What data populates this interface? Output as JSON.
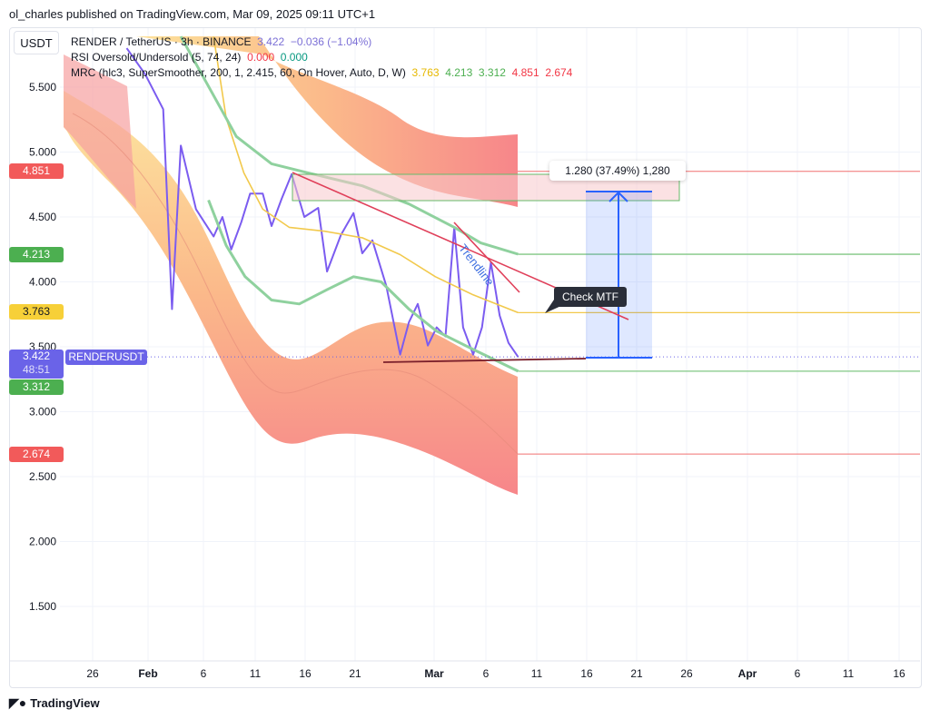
{
  "header": {
    "published": "ol_charles published on TradingView.com, Mar 09, 2025 09:11 UTC+1"
  },
  "currency_button": "USDT",
  "legend": {
    "symbol": "RENDER / TetherUS · 3h · BINANCE",
    "price": "3.422",
    "change": "−0.036 (−1.04%)",
    "rsi": "RSI Oversold/Undersold (5, 74, 24)",
    "rsi_v1": "0.000",
    "rsi_v2": "0.000",
    "mrc": "MRC (hlc3, SuperSmoother, 200, 1, 2.415, 60, On Hover, Auto, D, W)",
    "mrc_values": [
      "3.763",
      "4.213",
      "3.312",
      "4.851",
      "2.674"
    ]
  },
  "colors": {
    "price_line": "#7b5cf0",
    "mean": "#f2c94c",
    "inner": "#81c784",
    "outer": "#f07070",
    "accent": "#2962ff",
    "label_blue": "#6a63e8",
    "red": "#f23645",
    "green": "#4caf50"
  },
  "price_labels": {
    "r1": "4.851",
    "g1": "4.213",
    "y": "3.763",
    "cur": "3.422",
    "timer": "48:51",
    "g2": "3.312",
    "r2": "2.674",
    "symbol": "RENDERUSDT"
  },
  "annotations": {
    "measure": "1.280 (37.49%) 1,280",
    "trendline": "Trendline",
    "callout": "Check MTF"
  },
  "footer": {
    "brand": "TradingView"
  },
  "chart_data": {
    "type": "line",
    "title": "RENDER / TetherUS · 3h · BINANCE",
    "ylim": [
      1.1,
      5.9
    ],
    "y_ticks": [
      "5.500",
      "5.000",
      "4.500",
      "4.000",
      "3.500",
      "3.000",
      "2.500",
      "2.000",
      "1.500"
    ],
    "x_ticks": [
      "26",
      "Feb",
      "6",
      "11",
      "16",
      "21",
      "Mar",
      "6",
      "11",
      "16",
      "21",
      "26",
      "Apr",
      "6",
      "11",
      "16"
    ],
    "grid": true,
    "series": [
      {
        "name": "RENDER / TetherUS",
        "points": [
          [
            "2025-01-29 09:00",
            5.8
          ],
          [
            "2025-01-31 05:00",
            5.6
          ],
          [
            "2025-02-02 00:00",
            5.33
          ],
          [
            "2025-02-02 21:00",
            3.79
          ],
          [
            "2025-02-03 18:00",
            5.05
          ],
          [
            "2025-02-05 06:00",
            4.56
          ],
          [
            "2025-02-07 00:00",
            4.35
          ],
          [
            "2025-02-07 21:00",
            4.5
          ],
          [
            "2025-02-08 18:00",
            4.25
          ],
          [
            "2025-02-09 18:00",
            4.46
          ],
          [
            "2025-02-10 15:00",
            4.68
          ],
          [
            "2025-02-11 21:00",
            4.68
          ],
          [
            "2025-02-12 18:00",
            4.43
          ],
          [
            "2025-02-13 18:00",
            4.64
          ],
          [
            "2025-02-14 18:00",
            4.83
          ],
          [
            "2025-02-16 00:00",
            4.5
          ],
          [
            "2025-02-17 09:00",
            4.57
          ],
          [
            "2025-02-18 06:00",
            4.08
          ],
          [
            "2025-02-19 15:00",
            4.36
          ],
          [
            "2025-02-20 21:00",
            4.53
          ],
          [
            "2025-02-21 18:00",
            4.22
          ],
          [
            "2025-02-22 18:00",
            4.32
          ],
          [
            "2025-02-24 03:00",
            3.97
          ],
          [
            "2025-02-25 12:00",
            3.44
          ],
          [
            "2025-02-26 09:00",
            3.69
          ],
          [
            "2025-02-27 06:00",
            3.83
          ],
          [
            "2025-02-28 06:00",
            3.51
          ],
          [
            "2025-03-01 03:00",
            3.65
          ],
          [
            "2025-03-02 00:00",
            3.58
          ],
          [
            "2025-03-02 21:00",
            4.42
          ],
          [
            "2025-03-03 18:00",
            3.65
          ],
          [
            "2025-03-04 18:00",
            3.44
          ],
          [
            "2025-03-05 15:00",
            3.65
          ],
          [
            "2025-03-06 12:00",
            4.15
          ],
          [
            "2025-03-07 09:00",
            3.74
          ],
          [
            "2025-03-08 06:00",
            3.53
          ],
          [
            "2025-03-09 05:00",
            3.422
          ]
        ]
      },
      {
        "name": "MRC mean",
        "points": [
          [
            "2025-02-07",
            5.89
          ],
          [
            "2025-02-08 06:00",
            5.26
          ],
          [
            "2025-02-10",
            4.84
          ],
          [
            "2025-02-11 21:00",
            4.56
          ],
          [
            "2025-02-14 12:00",
            4.42
          ],
          [
            "2025-02-18",
            4.39
          ],
          [
            "2025-02-21 18:00",
            4.34
          ],
          [
            "2025-02-25 12:00",
            4.21
          ],
          [
            "2025-03-01",
            4.04
          ],
          [
            "2025-03-04 18:00",
            3.9
          ],
          [
            "2025-03-09 05:00",
            3.763
          ]
        ]
      },
      {
        "name": "MRC upper inner",
        "points": [
          [
            "2025-02-03 18:00",
            5.89
          ],
          [
            "2025-02-09 06:00",
            5.12
          ],
          [
            "2025-02-12 18:00",
            4.91
          ],
          [
            "2025-02-16 09:00",
            4.84
          ],
          [
            "2025-02-21 18:00",
            4.74
          ],
          [
            "2025-02-26 09:00",
            4.6
          ],
          [
            "2025-03-02 21:00",
            4.42
          ],
          [
            "2025-03-05 12:00",
            4.3
          ],
          [
            "2025-03-09 05:00",
            4.213
          ]
        ]
      },
      {
        "name": "MRC lower inner",
        "points": [
          [
            "2025-02-06 12:00",
            4.63
          ],
          [
            "2025-02-08 06:00",
            4.28
          ],
          [
            "2025-02-10 03:00",
            4.04
          ],
          [
            "2025-02-12 18:00",
            3.86
          ],
          [
            "2025-02-15 12:00",
            3.83
          ],
          [
            "2025-02-18 06:00",
            3.94
          ],
          [
            "2025-02-20 21:00",
            4.04
          ],
          [
            "2025-02-23 15:00",
            4.0
          ],
          [
            "2025-02-26 09:00",
            3.79
          ],
          [
            "2025-03-01 03:00",
            3.62
          ],
          [
            "2025-03-04 18:00",
            3.48
          ],
          [
            "2025-03-09 05:00",
            3.312
          ]
        ]
      }
    ]
  }
}
